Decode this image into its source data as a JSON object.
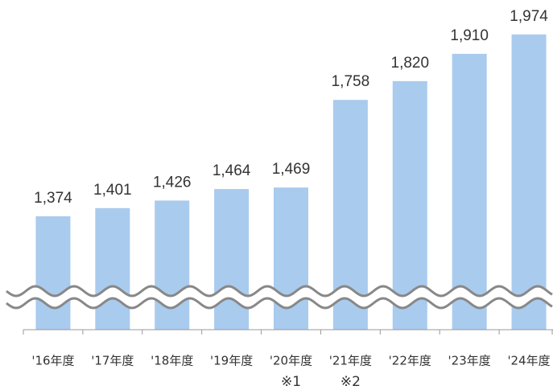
{
  "chart_data": {
    "type": "bar",
    "categories": [
      "'16年度",
      "'17年度",
      "'18年度",
      "'19年度",
      "'20年度",
      "'21年度",
      "'22年度",
      "'23年度",
      "'24年度"
    ],
    "footnotes": [
      null,
      null,
      null,
      null,
      "※1",
      "※2",
      null,
      null,
      null
    ],
    "values": [
      1374,
      1401,
      1426,
      1464,
      1469,
      1758,
      1820,
      1910,
      1974
    ],
    "value_labels": [
      "1,374",
      "1,401",
      "1,426",
      "1,464",
      "1,469",
      "1,758",
      "1,820",
      "1,910",
      "1,974"
    ],
    "color": "#a9cbee",
    "ylim": [
      1000,
      2000
    ],
    "axis_break": true
  }
}
